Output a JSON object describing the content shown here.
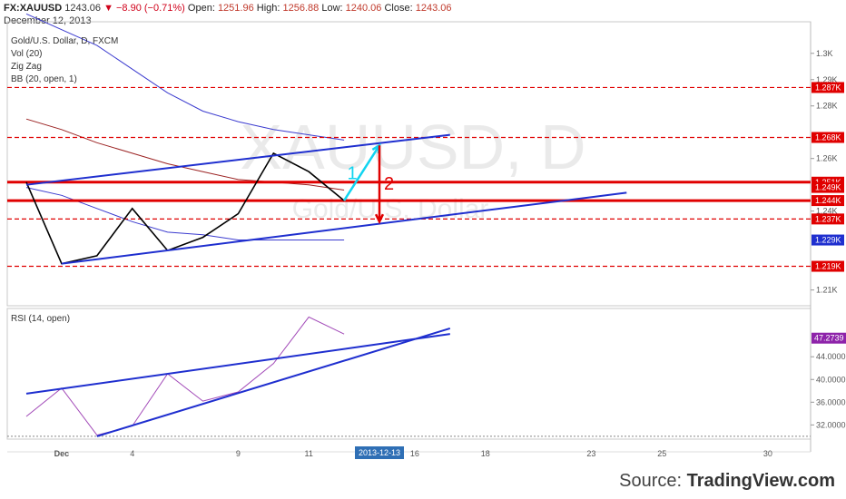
{
  "header": {
    "symbol": "FX:XAUUSD",
    "price": "1243.06",
    "change": "▼ −8.90 (−0.71%)",
    "open_label": "Open:",
    "open": "1251.96",
    "high_label": "High:",
    "high": "1256.88",
    "low_label": "Low:",
    "low": "1240.06",
    "close_label": "Close:",
    "close": "1243.06",
    "date": "December 12, 2013"
  },
  "indicators": [
    "Gold/U.S. Dollar, D, FXCM",
    "Vol (20)",
    "Zig Zag",
    "BB (20, open, 1)"
  ],
  "rsi_label": "RSI (14, open)",
  "watermark": {
    "symbol": "XAUUSD, D",
    "name": "Gold/U.S. Dollar"
  },
  "source": {
    "prefix": "Source:",
    "brand": "TradingView.com"
  },
  "colors": {
    "line": "#000000",
    "band": "#3b3bcf",
    "mid": "#9b2222",
    "red": "#e00000",
    "blue": "#1f2fcf",
    "cyan": "#11d4f0",
    "rsi": "#a24ab8",
    "rsitag": "#8e24aa"
  },
  "chart_data": [
    {
      "type": "line",
      "title": "Gold/U.S. Dollar, D, FXCM",
      "x_ticks": [
        {
          "label": "Dec",
          "bar": 1
        },
        {
          "label": "4",
          "bar": 3
        },
        {
          "label": "9",
          "bar": 6
        },
        {
          "label": "11",
          "bar": 8
        },
        {
          "label": "2013-12-13",
          "bar": 10,
          "highlight": true
        },
        {
          "label": "16",
          "bar": 11
        },
        {
          "label": "18",
          "bar": 13
        },
        {
          "label": "23",
          "bar": 16
        },
        {
          "label": "25",
          "bar": 18
        },
        {
          "label": "30",
          "bar": 21
        }
      ],
      "y_ticks": [
        "1.21K",
        "1.24K",
        "1.26K",
        "1.28K",
        "1.29K",
        "1.3K"
      ],
      "y_tick_values": [
        1210,
        1240,
        1260,
        1280,
        1290,
        1300
      ],
      "ylim": [
        1204,
        1312
      ],
      "zigzag": {
        "bars": [
          0,
          1,
          2,
          3,
          4,
          5,
          6,
          7,
          8,
          9
        ],
        "values": [
          1251,
          1220,
          1223,
          1241,
          1225,
          1230,
          1239,
          1262,
          1255,
          1244
        ]
      },
      "bb_upper": {
        "bars": [
          0,
          1,
          2,
          3,
          4,
          5,
          6,
          7,
          8,
          9
        ],
        "values": [
          1315,
          1309,
          1303,
          1294,
          1285,
          1278,
          1274,
          1271,
          1269,
          1267
        ]
      },
      "bb_mid": {
        "bars": [
          0,
          1,
          2,
          3,
          4,
          5,
          6,
          7,
          8,
          9
        ],
        "values": [
          1275,
          1271,
          1266,
          1262,
          1258,
          1255,
          1252,
          1251,
          1250,
          1248
        ]
      },
      "bb_lower": {
        "bars": [
          0,
          1,
          2,
          3,
          4,
          5,
          6,
          7,
          8,
          9
        ],
        "values": [
          1249,
          1246,
          1241,
          1236,
          1232,
          1231,
          1229,
          1229,
          1229,
          1229
        ]
      },
      "levels": [
        {
          "label": "1.287K",
          "value": 1287,
          "style": "dashed",
          "color": "#e00000"
        },
        {
          "label": "1.268K",
          "value": 1268,
          "style": "dashed",
          "color": "#e00000"
        },
        {
          "label": "1.251K",
          "value": 1251,
          "style": "solid",
          "color": "#e00000"
        },
        {
          "label": "1.249K",
          "value": 1249,
          "style": "none",
          "color": "#e00000"
        },
        {
          "label": "1.244K",
          "value": 1244,
          "style": "solid",
          "color": "#e00000"
        },
        {
          "label": "1.237K",
          "value": 1237,
          "style": "dashed",
          "color": "#e00000"
        },
        {
          "label": "1.229K",
          "value": 1229,
          "style": "none",
          "color": "#1f2fcf"
        },
        {
          "label": "1.219K",
          "value": 1219,
          "style": "dashed",
          "color": "#e00000"
        }
      ],
      "trendlines": [
        {
          "from": [
            0,
            1250
          ],
          "to": [
            12,
            1269
          ]
        },
        {
          "from": [
            1,
            1220
          ],
          "to": [
            17,
            1247
          ]
        }
      ],
      "annotations": [
        {
          "label": "1",
          "from": [
            9,
            1244
          ],
          "to": [
            10,
            1265
          ],
          "color": "#11d4f0"
        },
        {
          "label": "2",
          "from": [
            10,
            1265
          ],
          "to": [
            10,
            1236
          ],
          "color": "#e00000"
        }
      ]
    },
    {
      "type": "line",
      "title": "RSI (14, open)",
      "y_ticks": [
        "32.0000",
        "36.0000",
        "40.0000",
        "44.0000"
      ],
      "y_tick_values": [
        32,
        36,
        40,
        44
      ],
      "ylim": [
        29.5,
        52.5
      ],
      "last_value": "47.2739",
      "rsi": {
        "bars": [
          0,
          1,
          2,
          3,
          4,
          5,
          6,
          7,
          8,
          9
        ],
        "values": [
          33.5,
          38.5,
          30.2,
          31.8,
          41.0,
          36.2,
          37.8,
          42.8,
          51.0,
          48.0
        ]
      },
      "trendlines": [
        {
          "from": [
            0,
            37.5
          ],
          "to": [
            12,
            48.0
          ]
        },
        {
          "from": [
            2,
            30.0
          ],
          "to": [
            12,
            49.0
          ]
        }
      ]
    }
  ]
}
